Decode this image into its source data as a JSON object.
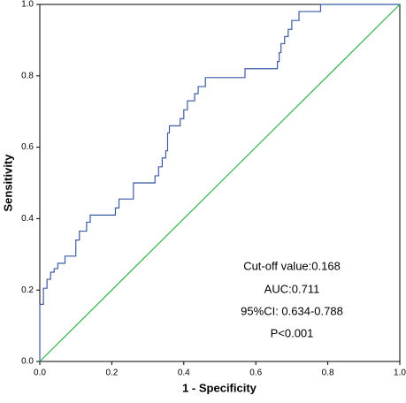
{
  "chart_data": {
    "type": "line",
    "xlabel": "1 - Specificity",
    "ylabel": "Sensitivity",
    "xlim": [
      0,
      1
    ],
    "ylim": [
      0,
      1
    ],
    "xticks": [
      {
        "value": 0,
        "label": "0.0"
      },
      0.2,
      0.4,
      0.6,
      0.8,
      {
        "value": 1,
        "label": "1.0"
      }
    ],
    "yticks": [
      {
        "value": 0,
        "label": "0.0"
      },
      0.2,
      0.4,
      0.6,
      0.8,
      {
        "value": 1,
        "label": "1.0"
      }
    ],
    "series": [
      {
        "color": "#3b5ba5",
        "x": [
          0,
          0,
          0.01,
          0.01,
          0.02,
          0.02,
          0.03,
          0.03,
          0.04,
          0.04,
          0.05,
          0.05,
          0.07,
          0.07,
          0.1,
          0.1,
          0.11,
          0.11,
          0.13,
          0.13,
          0.14,
          0.14,
          0.21,
          0.21,
          0.22,
          0.22,
          0.26,
          0.26,
          0.32,
          0.32,
          0.33,
          0.33,
          0.34,
          0.34,
          0.35,
          0.35,
          0.355,
          0.355,
          0.36,
          0.36,
          0.39,
          0.39,
          0.4,
          0.4,
          0.41,
          0.41,
          0.43,
          0.43,
          0.44,
          0.44,
          0.46,
          0.46,
          0.57,
          0.57,
          0.66,
          0.66,
          0.665,
          0.665,
          0.67,
          0.67,
          0.68,
          0.68,
          0.69,
          0.69,
          0.7,
          0.7,
          0.72,
          0.72,
          0.78,
          0.78,
          1
        ],
        "values": [
          0,
          0.16,
          0.16,
          0.205,
          0.205,
          0.23,
          0.23,
          0.25,
          0.25,
          0.26,
          0.26,
          0.275,
          0.275,
          0.295,
          0.295,
          0.34,
          0.34,
          0.365,
          0.365,
          0.39,
          0.39,
          0.41,
          0.41,
          0.43,
          0.43,
          0.455,
          0.455,
          0.5,
          0.5,
          0.52,
          0.52,
          0.545,
          0.545,
          0.57,
          0.57,
          0.59,
          0.59,
          0.64,
          0.64,
          0.66,
          0.66,
          0.68,
          0.68,
          0.705,
          0.705,
          0.73,
          0.73,
          0.75,
          0.75,
          0.77,
          0.77,
          0.795,
          0.795,
          0.82,
          0.82,
          0.84,
          0.84,
          0.865,
          0.865,
          0.89,
          0.89,
          0.91,
          0.91,
          0.93,
          0.93,
          0.955,
          0.955,
          0.98,
          0.98,
          1,
          1
        ]
      },
      {
        "color": "#2db34a",
        "x": [
          0,
          1
        ],
        "values": [
          0,
          1
        ]
      }
    ],
    "annotations": [
      "Cut-off value:0.168",
      "AUC:0.711",
      "95%CI: 0.634-0.788",
      "P<0.001"
    ]
  }
}
